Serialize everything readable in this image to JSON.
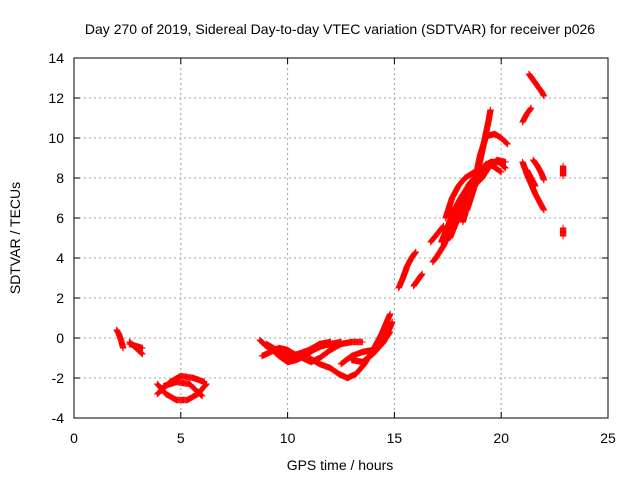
{
  "chart_data": {
    "type": "scatter",
    "title": "Day 270 of 2019, Sidereal Day-to-day VTEC variation (SDTVAR) for receiver p026",
    "xlabel": "GPS time / hours",
    "ylabel": "SDTVAR / TECUs",
    "xlim": [
      0,
      25
    ],
    "ylim": [
      -4,
      14
    ],
    "xticks": [
      0,
      5,
      10,
      15,
      20,
      25
    ],
    "yticks": [
      -4,
      -2,
      0,
      2,
      4,
      6,
      8,
      10,
      12,
      14
    ],
    "grid": true,
    "marker": "+",
    "colors": {
      "series": "#ff0000",
      "grid": "#a0a0a0",
      "axis": "#000000"
    },
    "segments": [
      {
        "points": [
          [
            2.0,
            0.4
          ],
          [
            2.1,
            0.2
          ],
          [
            2.2,
            -0.1
          ],
          [
            2.3,
            -0.5
          ]
        ]
      },
      {
        "points": [
          [
            2.6,
            -0.2
          ],
          [
            2.8,
            -0.4
          ],
          [
            3.0,
            -0.6
          ],
          [
            3.2,
            -0.8
          ]
        ]
      },
      {
        "points": [
          [
            2.6,
            -0.3
          ],
          [
            2.9,
            -0.4
          ],
          [
            3.2,
            -0.5
          ]
        ]
      },
      {
        "points": [
          [
            3.9,
            -2.3
          ],
          [
            4.3,
            -2.8
          ],
          [
            4.8,
            -3.1
          ],
          [
            5.3,
            -3.1
          ],
          [
            5.8,
            -2.8
          ],
          [
            6.2,
            -2.3
          ]
        ]
      },
      {
        "points": [
          [
            3.9,
            -2.8
          ],
          [
            4.5,
            -2.2
          ],
          [
            5.0,
            -1.9
          ],
          [
            5.6,
            -2.0
          ],
          [
            6.1,
            -2.2
          ]
        ]
      },
      {
        "points": [
          [
            4.2,
            -2.4
          ],
          [
            4.8,
            -2.2
          ],
          [
            5.4,
            -2.3
          ],
          [
            6.0,
            -2.9
          ]
        ]
      },
      {
        "points": [
          [
            8.7,
            -0.1
          ],
          [
            9.0,
            -0.4
          ],
          [
            9.3,
            -0.6
          ],
          [
            9.6,
            -0.9
          ],
          [
            10.0,
            -1.2
          ],
          [
            10.4,
            -1.1
          ],
          [
            10.8,
            -0.9
          ],
          [
            11.2,
            -0.6
          ],
          [
            11.6,
            -0.4
          ],
          [
            12.0,
            -0.3
          ],
          [
            12.5,
            -0.2
          ]
        ]
      },
      {
        "points": [
          [
            8.8,
            -0.9
          ],
          [
            9.2,
            -0.7
          ],
          [
            9.6,
            -0.5
          ],
          [
            10.0,
            -0.6
          ],
          [
            10.3,
            -0.8
          ],
          [
            10.7,
            -1.0
          ],
          [
            11.1,
            -1.2
          ],
          [
            11.5,
            -1.0
          ],
          [
            12.0,
            -0.6
          ],
          [
            12.5,
            -0.3
          ],
          [
            13.0,
            -0.2
          ],
          [
            13.5,
            -0.2
          ]
        ]
      },
      {
        "points": [
          [
            9.0,
            -0.3
          ],
          [
            9.5,
            -0.6
          ],
          [
            10.0,
            -0.9
          ],
          [
            10.5,
            -0.8
          ],
          [
            11.0,
            -0.6
          ],
          [
            11.5,
            -0.3
          ],
          [
            12.0,
            -0.2
          ]
        ]
      },
      {
        "points": [
          [
            11.0,
            -1.0
          ],
          [
            11.5,
            -1.3
          ],
          [
            12.0,
            -1.5
          ],
          [
            12.4,
            -1.8
          ],
          [
            12.8,
            -2.0
          ],
          [
            13.2,
            -1.8
          ],
          [
            13.6,
            -1.3
          ],
          [
            14.0,
            -0.6
          ],
          [
            14.4,
            0.2
          ],
          [
            14.8,
            1.2
          ]
        ]
      },
      {
        "points": [
          [
            12.5,
            -1.3
          ],
          [
            13.0,
            -0.9
          ],
          [
            13.5,
            -0.7
          ],
          [
            14.0,
            -0.6
          ],
          [
            14.4,
            -0.3
          ],
          [
            14.8,
            0.3
          ]
        ]
      },
      {
        "points": [
          [
            13.0,
            -1.1
          ],
          [
            13.5,
            -1.2
          ],
          [
            14.0,
            -0.8
          ],
          [
            14.5,
            -0.2
          ],
          [
            14.9,
            0.8
          ]
        ]
      },
      {
        "points": [
          [
            15.2,
            2.5
          ],
          [
            15.4,
            3.0
          ],
          [
            15.6,
            3.6
          ],
          [
            15.8,
            4.0
          ],
          [
            16.0,
            4.3
          ]
        ]
      },
      {
        "points": [
          [
            15.9,
            2.6
          ],
          [
            16.1,
            2.9
          ],
          [
            16.3,
            3.2
          ]
        ]
      },
      {
        "points": [
          [
            16.7,
            4.8
          ],
          [
            17.0,
            5.2
          ],
          [
            17.3,
            5.6
          ]
        ]
      },
      {
        "points": [
          [
            16.8,
            3.8
          ],
          [
            17.0,
            4.1
          ],
          [
            17.3,
            4.6
          ],
          [
            17.6,
            5.3
          ],
          [
            17.9,
            6.2
          ],
          [
            18.2,
            7.1
          ],
          [
            18.5,
            7.7
          ],
          [
            18.9,
            8.2
          ],
          [
            19.2,
            8.6
          ],
          [
            19.5,
            8.8
          ],
          [
            19.9,
            8.8
          ],
          [
            20.2,
            8.5
          ]
        ]
      },
      {
        "points": [
          [
            17.2,
            4.8
          ],
          [
            17.5,
            5.6
          ],
          [
            17.8,
            6.4
          ],
          [
            18.1,
            7.0
          ],
          [
            18.4,
            7.5
          ],
          [
            18.8,
            7.7
          ],
          [
            19.1,
            8.0
          ],
          [
            19.4,
            8.5
          ],
          [
            19.8,
            8.9
          ],
          [
            20.2,
            8.8
          ]
        ]
      },
      {
        "points": [
          [
            17.4,
            6.0
          ],
          [
            17.7,
            7.0
          ],
          [
            18.0,
            7.6
          ],
          [
            18.3,
            8.0
          ],
          [
            18.6,
            8.2
          ],
          [
            18.9,
            8.4
          ]
        ]
      },
      {
        "points": [
          [
            17.6,
            5.0
          ],
          [
            17.9,
            5.8
          ],
          [
            18.2,
            6.6
          ],
          [
            18.5,
            7.3
          ],
          [
            18.8,
            8.0
          ],
          [
            19.0,
            8.8
          ],
          [
            19.2,
            9.8
          ],
          [
            19.4,
            10.8
          ],
          [
            19.5,
            11.4
          ]
        ]
      },
      {
        "points": [
          [
            18.2,
            5.8
          ],
          [
            18.5,
            6.9
          ],
          [
            18.8,
            8.0
          ],
          [
            19.0,
            9.1
          ],
          [
            19.3,
            10.1
          ],
          [
            19.7,
            10.2
          ],
          [
            20.0,
            10.0
          ],
          [
            20.3,
            9.7
          ]
        ]
      },
      {
        "points": [
          [
            18.4,
            6.4
          ],
          [
            18.7,
            7.4
          ],
          [
            19.0,
            8.3
          ],
          [
            19.3,
            8.7
          ],
          [
            19.6,
            8.6
          ],
          [
            20.0,
            8.3
          ]
        ]
      },
      {
        "points": [
          [
            21.0,
            8.8
          ],
          [
            21.2,
            8.2
          ],
          [
            21.4,
            7.7
          ],
          [
            21.6,
            7.2
          ],
          [
            21.8,
            6.8
          ],
          [
            22.0,
            6.4
          ]
        ]
      },
      {
        "points": [
          [
            21.2,
            8.4
          ],
          [
            21.4,
            8.0
          ],
          [
            21.6,
            7.6
          ]
        ]
      },
      {
        "points": [
          [
            21.5,
            8.9
          ],
          [
            21.7,
            8.6
          ],
          [
            21.9,
            8.2
          ],
          [
            22.0,
            7.9
          ]
        ]
      },
      {
        "points": [
          [
            21.0,
            10.8
          ],
          [
            21.2,
            11.2
          ],
          [
            21.4,
            11.5
          ]
        ]
      },
      {
        "points": [
          [
            21.3,
            13.2
          ],
          [
            21.5,
            12.9
          ],
          [
            21.7,
            12.6
          ],
          [
            21.9,
            12.3
          ],
          [
            22.0,
            12.1
          ]
        ]
      },
      {
        "points": [
          [
            22.9,
            8.6
          ],
          [
            22.9,
            8.1
          ]
        ]
      },
      {
        "points": [
          [
            22.9,
            5.5
          ],
          [
            22.9,
            5.1
          ]
        ]
      }
    ]
  }
}
